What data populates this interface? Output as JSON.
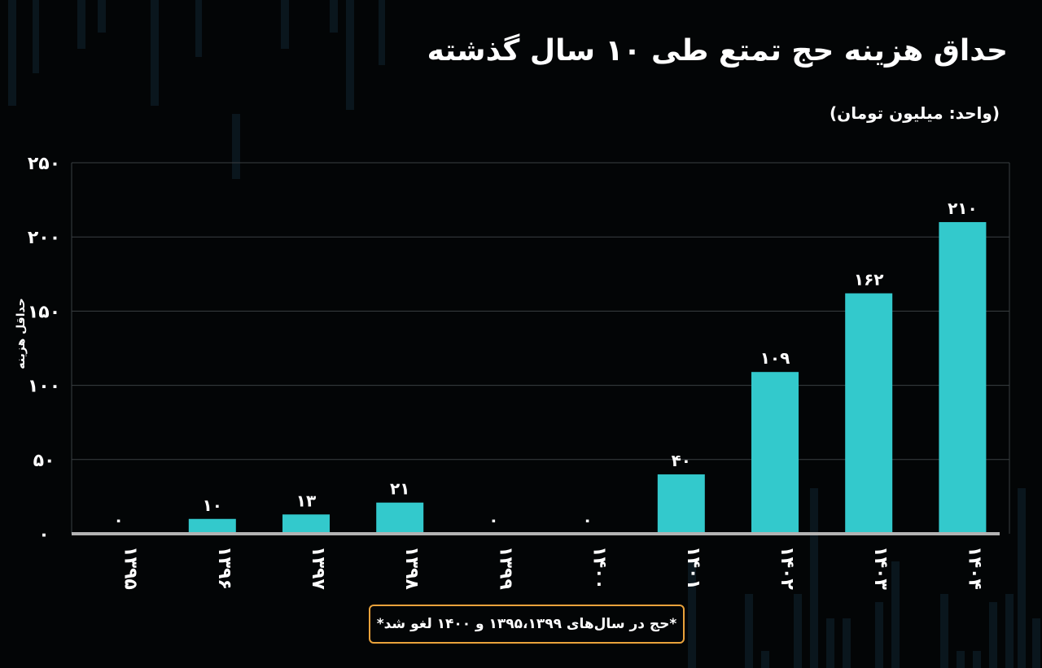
{
  "title": "حداق هزینه حج تمتع طی ۱۰ سال گذشته",
  "unit_label": "(واحد: میلیون تومان)",
  "footnote": "*حج در سال‌های ۱۳۹۵،۱۳۹۹ و ۱۴۰۰ لغو شد*",
  "colors": {
    "background": "#030506",
    "bar": "#33c9cc",
    "axis": "#b3b3b3",
    "grid": "#3a3f42",
    "footnote_border": "#e9a23b",
    "text": "#ffffff"
  },
  "chart_data": {
    "type": "bar",
    "ylabel": "حداقل هزینه",
    "xlabel": "",
    "ylim": [
      0,
      250
    ],
    "yticks": [
      0,
      50,
      100,
      150,
      200,
      250
    ],
    "ytick_labels": [
      "۰",
      "۵۰",
      "۱۰۰",
      "۱۵۰",
      "۲۰۰",
      "۲۵۰"
    ],
    "grid": true,
    "categories": [
      "۱۳۹۵",
      "۱۳۹۶",
      "۱۳۹۷",
      "۱۳۹۸",
      "۱۳۹۹",
      "۱۴۰۰",
      "۱۴۰۱",
      "۱۴۰۲",
      "۱۴۰۳",
      "۱۴۰۴"
    ],
    "values": [
      0,
      10,
      13,
      21,
      0,
      0,
      40,
      109,
      162,
      210
    ],
    "value_labels": [
      "۰",
      "۱۰",
      "۱۳",
      "۲۱",
      "۰",
      "۰",
      "۴۰",
      "۱۰۹",
      "۱۶۲",
      "۲۱۰"
    ]
  }
}
